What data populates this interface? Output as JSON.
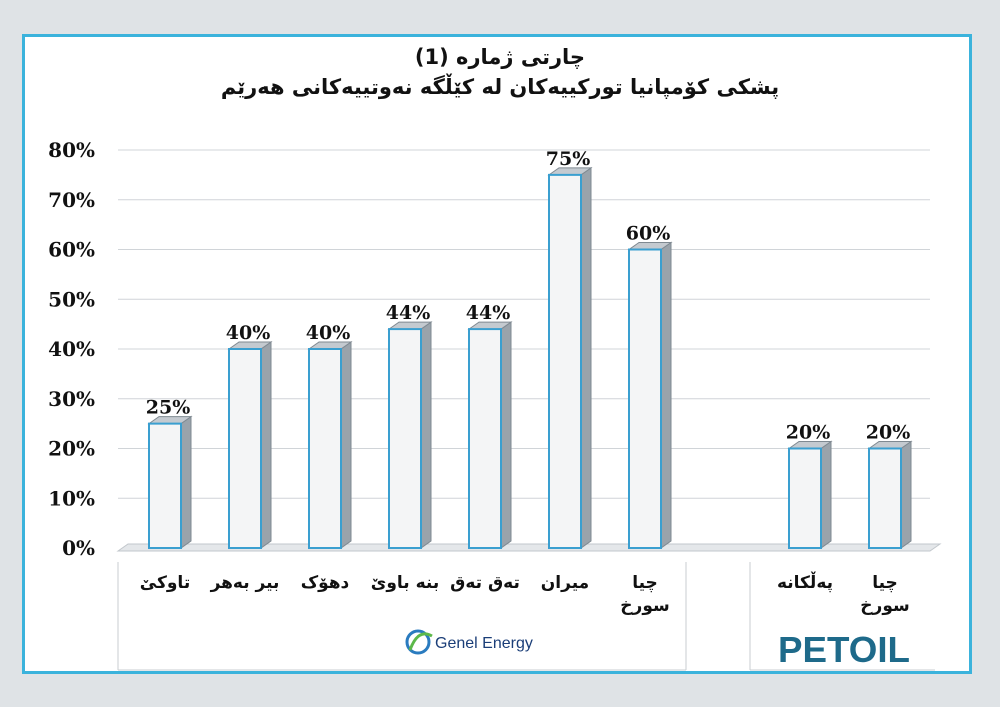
{
  "title": {
    "line1": "چارتی ژماره (1)",
    "line2": "پشکی کۆمپانیا تورکییەکان لە کێڵگە نەوتییەکانی هەرێم"
  },
  "logos": {
    "genel": "Genel Energy",
    "petoil": "PETOIL"
  },
  "colors": {
    "frame": "#3bb3dc",
    "bar_face": "#f4f5f6",
    "bar_outline": "#3a9fd0",
    "bar_side": "#9aa3ab",
    "grid": "#d0d4d8"
  },
  "chart_data": {
    "type": "bar",
    "categories": [
      [
        "تاوکێ"
      ],
      [
        "بیر بەهر"
      ],
      [
        "دهۆک"
      ],
      [
        "بنە باوێ"
      ],
      [
        "تەق تەق"
      ],
      [
        "میران"
      ],
      [
        "چیا",
        "سورخ"
      ],
      [
        "پەڵکانە"
      ],
      [
        "چیا",
        "سورخ"
      ]
    ],
    "values": [
      25,
      40,
      40,
      44,
      44,
      75,
      60,
      20,
      20
    ],
    "value_labels": [
      "25%",
      "40%",
      "40%",
      "44%",
      "44%",
      "75%",
      "60%",
      "20%",
      "20%"
    ],
    "groups": [
      {
        "logo": "Genel Energy",
        "indices": [
          0,
          1,
          2,
          3,
          4,
          5,
          6
        ]
      },
      {
        "logo": "PETOIL",
        "indices": [
          7,
          8
        ]
      }
    ],
    "yticks": [
      "0%",
      "10%",
      "20%",
      "30%",
      "40%",
      "50%",
      "60%",
      "70%",
      "80%"
    ],
    "ylim": [
      0,
      80
    ],
    "grid": true,
    "legend": "none"
  }
}
